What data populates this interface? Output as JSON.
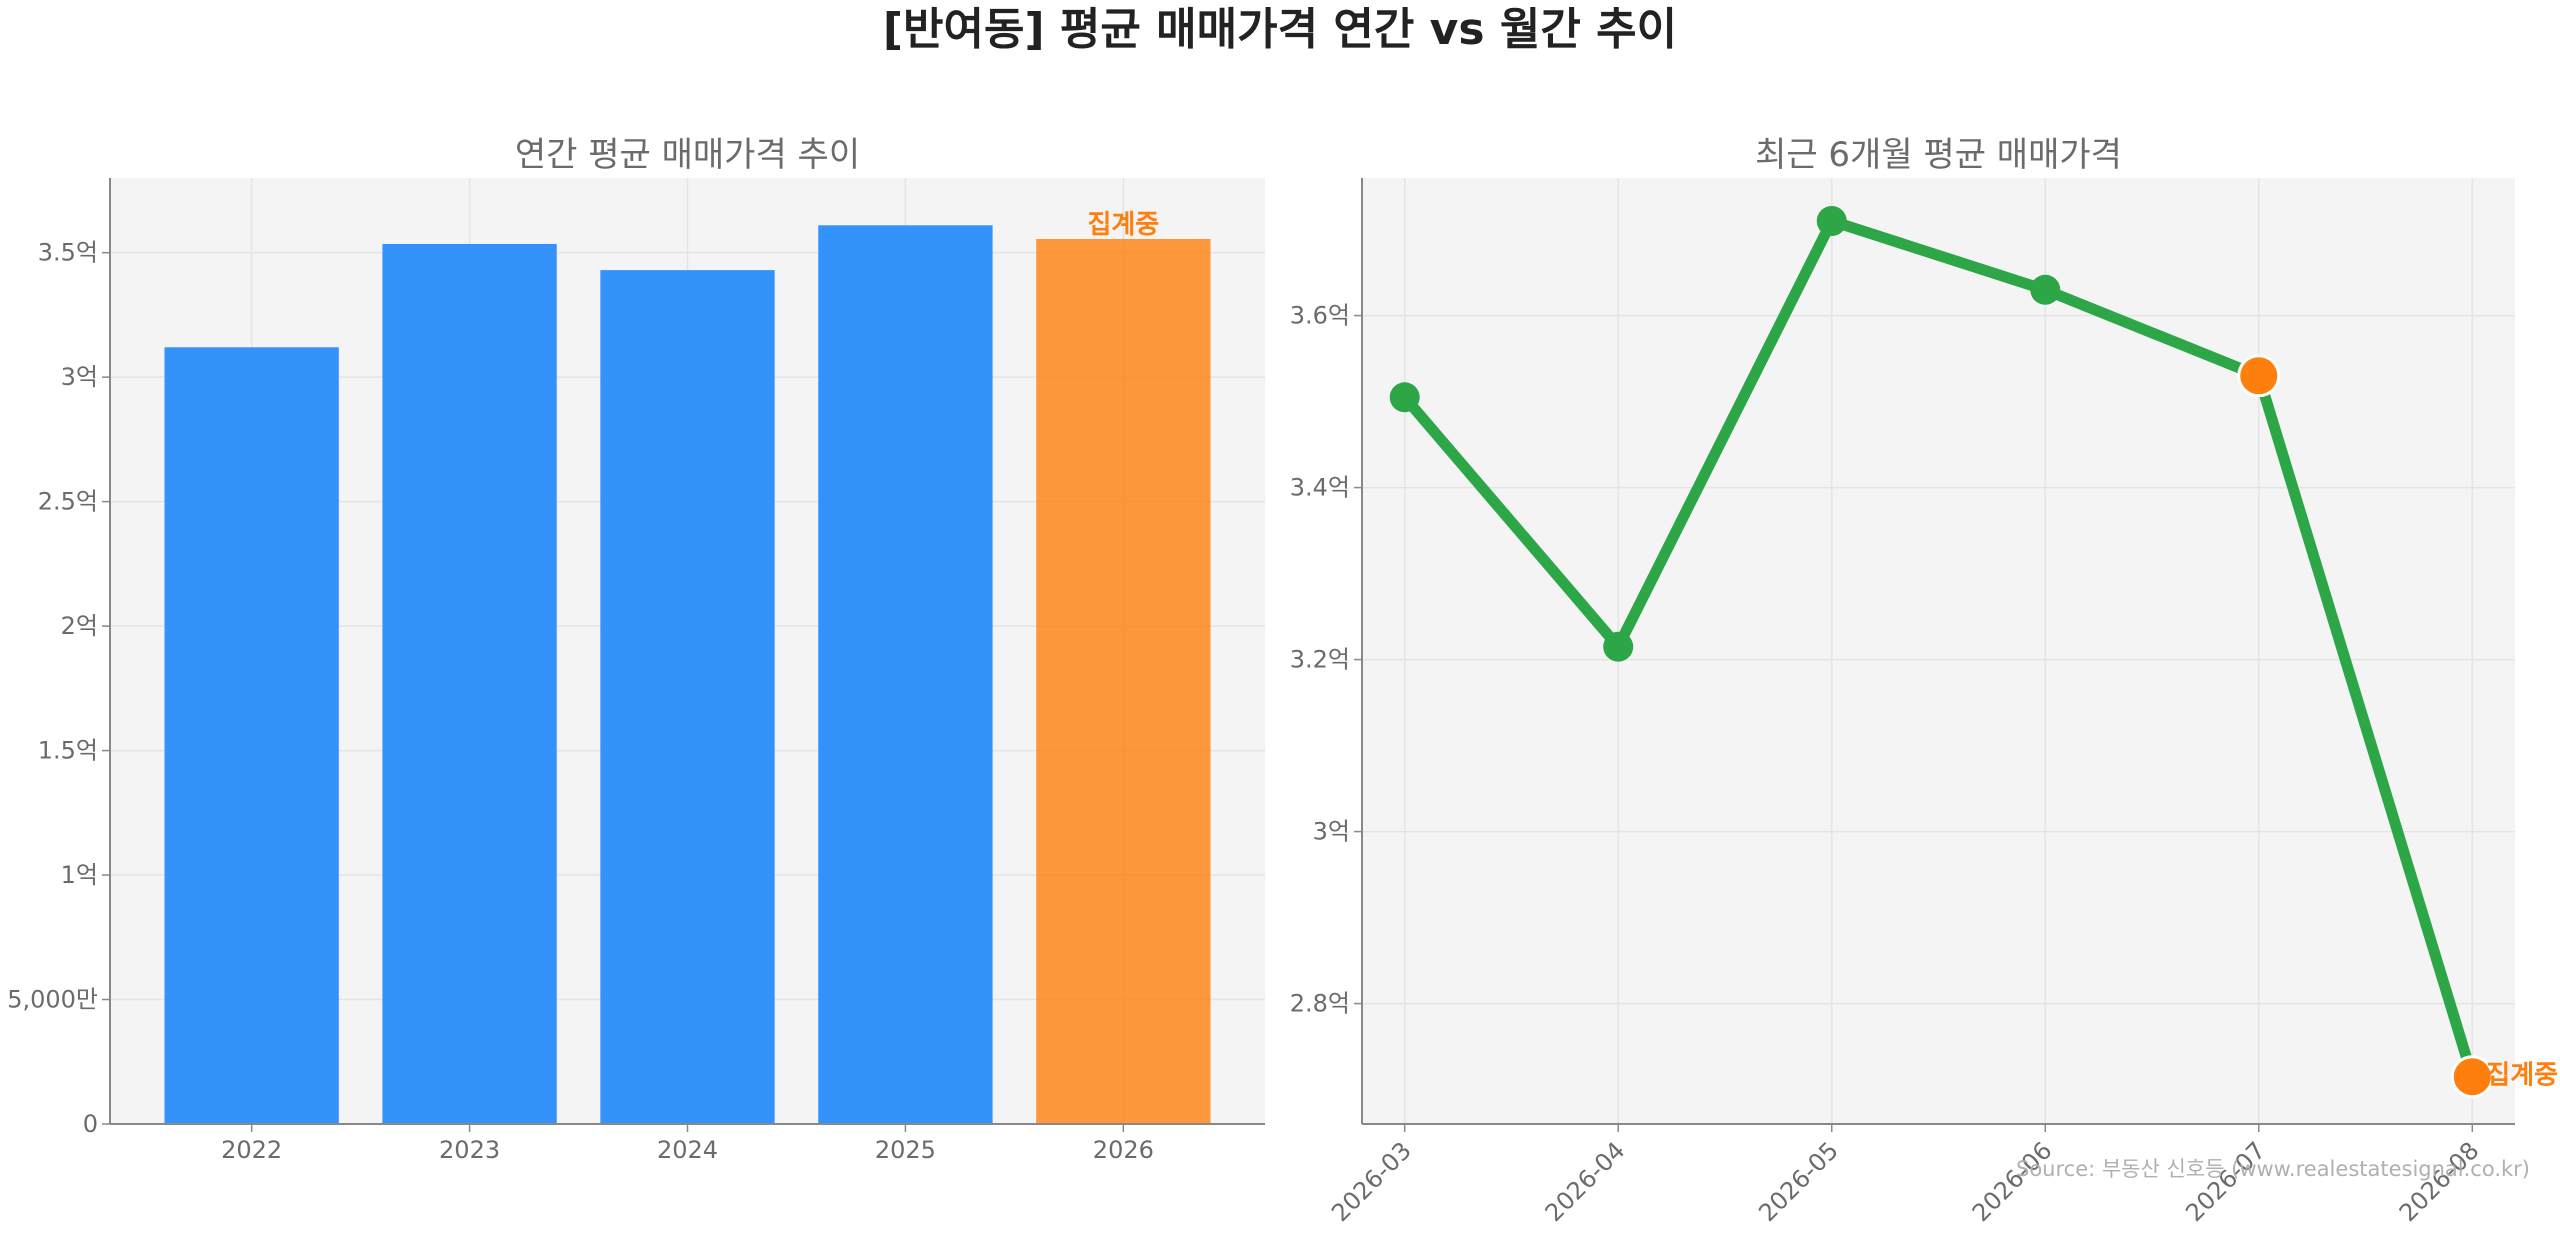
{
  "figure": {
    "suptitle": "[반여동] 평균 매매가격 연간 vs 월간 추이",
    "source": "Source: 부동산 신호등 (www.realestatesignal.co.kr)",
    "colors": {
      "bar": "#3393fb",
      "highlight": "#ff7f0e",
      "line": "#2ca646",
      "panel_bg": "#f4f4f4",
      "axis": "#888888",
      "grid": "#e4e4e4"
    }
  },
  "chart_data": [
    {
      "type": "bar",
      "title": "연간 평균 매매가격 추이",
      "categories": [
        "2022",
        "2023",
        "2024",
        "2025",
        "2026"
      ],
      "values": [
        312000000,
        353500000,
        343000000,
        361000000,
        355500000
      ],
      "highlight_index": 4,
      "highlight_label": "집계중",
      "ylim": [
        0,
        380000000
      ],
      "yticks": [
        0,
        50000000,
        100000000,
        150000000,
        200000000,
        250000000,
        300000000,
        350000000
      ],
      "ytick_labels": [
        "0",
        "5,000만",
        "1억",
        "1.5억",
        "2억",
        "2.5억",
        "3억",
        "3.5억"
      ],
      "grid": true
    },
    {
      "type": "line",
      "title": "최근 6개월 평균 매매가격",
      "x": [
        "2026-03",
        "2026-04",
        "2026-05",
        "2026-06",
        "2026-07",
        "2026-08"
      ],
      "values": [
        350500000,
        321500000,
        371000000,
        363000000,
        353000000,
        271500000
      ],
      "highlight_indices": [
        4,
        5
      ],
      "highlight_label": "집계중",
      "ylim": [
        266000000,
        376000000
      ],
      "yticks": [
        280000000,
        300000000,
        320000000,
        340000000,
        360000000
      ],
      "ytick_labels": [
        "2.8억",
        "3억",
        "3.2억",
        "3.4억",
        "3.6억"
      ],
      "grid": true
    }
  ]
}
